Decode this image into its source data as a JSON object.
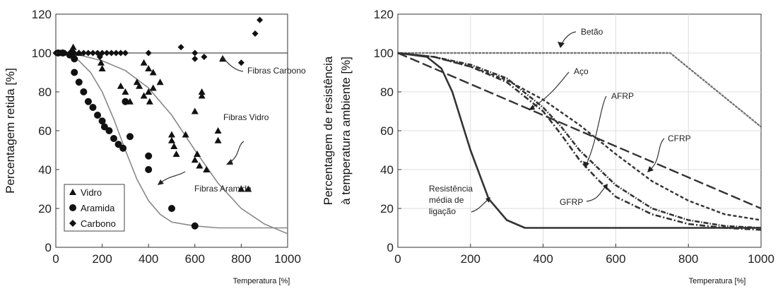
{
  "chart_data": [
    {
      "type": "scatter",
      "xlabel": "Temperatura [%]",
      "ylabel": "Percentagem retida [%]",
      "xlim": [
        0,
        1000
      ],
      "ylim": [
        0,
        120
      ],
      "xticks": [
        "0",
        "200",
        "400",
        "600",
        "800",
        "1000"
      ],
      "yticks": [
        "0",
        "20",
        "40",
        "60",
        "80",
        "100",
        "120"
      ],
      "reference_line": 100,
      "legend_position": "bottom-left",
      "series": [
        {
          "name": "Vidro",
          "marker": "triangle",
          "points": [
            [
              20,
              100
            ],
            [
              75,
              103
            ],
            [
              100,
              100
            ],
            [
              195,
              95
            ],
            [
              200,
              92
            ],
            [
              280,
              83
            ],
            [
              300,
              80
            ],
            [
              320,
              75
            ],
            [
              350,
              85
            ],
            [
              360,
              83
            ],
            [
              380,
              95
            ],
            [
              380,
              78
            ],
            [
              400,
              92
            ],
            [
              400,
              80
            ],
            [
              405,
              75
            ],
            [
              420,
              82
            ],
            [
              420,
              90
            ],
            [
              450,
              85
            ],
            [
              500,
              58
            ],
            [
              500,
              55
            ],
            [
              510,
              52
            ],
            [
              520,
              48
            ],
            [
              560,
              58
            ],
            [
              600,
              70
            ],
            [
              600,
              45
            ],
            [
              610,
              48
            ],
            [
              620,
              42
            ],
            [
              630,
              78
            ],
            [
              630,
              80
            ],
            [
              650,
              40
            ],
            [
              700,
              60
            ],
            [
              700,
              55
            ],
            [
              720,
              97
            ],
            [
              800,
              30
            ],
            [
              830,
              30
            ]
          ]
        },
        {
          "name": "Aramida",
          "marker": "circle",
          "points": [
            [
              10,
              100
            ],
            [
              30,
              100
            ],
            [
              60,
              99
            ],
            [
              70,
              100
            ],
            [
              80,
              97
            ],
            [
              80,
              90
            ],
            [
              100,
              85
            ],
            [
              120,
              80
            ],
            [
              140,
              75
            ],
            [
              160,
              72
            ],
            [
              180,
              68
            ],
            [
              200,
              65
            ],
            [
              210,
              62
            ],
            [
              230,
              60
            ],
            [
              250,
              56
            ],
            [
              270,
              53
            ],
            [
              290,
              51
            ],
            [
              300,
              75
            ],
            [
              320,
              57
            ],
            [
              400,
              47
            ],
            [
              400,
              40
            ],
            [
              500,
              20
            ],
            [
              600,
              11
            ]
          ]
        },
        {
          "name": "Carbono",
          "marker": "diamond",
          "points": [
            [
              0,
              100
            ],
            [
              20,
              100
            ],
            [
              40,
              100
            ],
            [
              60,
              100
            ],
            [
              80,
              100
            ],
            [
              100,
              100
            ],
            [
              120,
              100
            ],
            [
              140,
              100
            ],
            [
              160,
              100
            ],
            [
              180,
              100
            ],
            [
              190,
              98
            ],
            [
              200,
              100
            ],
            [
              220,
              100
            ],
            [
              240,
              100
            ],
            [
              260,
              100
            ],
            [
              280,
              100
            ],
            [
              300,
              100
            ],
            [
              400,
              100
            ],
            [
              540,
              103
            ],
            [
              600,
              100
            ],
            [
              600,
              97
            ],
            [
              640,
              98
            ],
            [
              800,
              95
            ],
            [
              860,
              110
            ],
            [
              880,
              117
            ]
          ]
        }
      ],
      "fit_curves": [
        {
          "label": "Fibras Carbono",
          "points": [
            [
              0,
              100
            ],
            [
              1000,
              100
            ]
          ]
        },
        {
          "label": "Fibras Vidro",
          "points": [
            [
              0,
              100
            ],
            [
              100,
              99
            ],
            [
              200,
              96
            ],
            [
              300,
              91
            ],
            [
              400,
              82
            ],
            [
              500,
              68
            ],
            [
              600,
              50
            ],
            [
              700,
              33
            ],
            [
              800,
              20
            ],
            [
              900,
              12
            ],
            [
              1000,
              7
            ]
          ]
        },
        {
          "label": "Fibras Aramida",
          "points": [
            [
              0,
              100
            ],
            [
              50,
              99
            ],
            [
              100,
              96
            ],
            [
              150,
              90
            ],
            [
              200,
              80
            ],
            [
              250,
              66
            ],
            [
              300,
              50
            ],
            [
              350,
              35
            ],
            [
              400,
              24
            ],
            [
              450,
              17
            ],
            [
              500,
              13
            ],
            [
              600,
              11
            ],
            [
              700,
              10
            ],
            [
              800,
              10
            ],
            [
              1000,
              10
            ]
          ]
        }
      ],
      "annotations": [
        "Fibras Carbono",
        "Fibras Vidro",
        "Fibras Aramida"
      ]
    },
    {
      "type": "line",
      "xlabel": "Temperatura [%]",
      "ylabel": "Percentagem de resistência à temperatura ambiente [%]",
      "ylabel_lines": [
        "Percentagem de resistência",
        "à temperatura ambiente [%]"
      ],
      "xlim": [
        0,
        1000
      ],
      "ylim": [
        0,
        120
      ],
      "xticks": [
        "0",
        "200",
        "400",
        "600",
        "800",
        "1000"
      ],
      "yticks": [
        "0",
        "20",
        "40",
        "60",
        "80",
        "100",
        "120"
      ],
      "series": [
        {
          "name": "Betão",
          "style": "dotted",
          "x": [
            0,
            750,
            1000
          ],
          "y": [
            100,
            100,
            62
          ]
        },
        {
          "name": "Aço",
          "style": "short-dash",
          "x": [
            0,
            100,
            200,
            300,
            400,
            500,
            600,
            700,
            800,
            900,
            1000
          ],
          "y": [
            100,
            98,
            93,
            86,
            76,
            63,
            48,
            34,
            24,
            17,
            14
          ]
        },
        {
          "name": "AFRP",
          "style": "dense-dash",
          "x": [
            0,
            100,
            200,
            300,
            400,
            450,
            500,
            600,
            700,
            800,
            900,
            1000
          ],
          "y": [
            100,
            98,
            94,
            87,
            72,
            62,
            50,
            32,
            20,
            14,
            11,
            10
          ]
        },
        {
          "name": "CFRP",
          "style": "long-dash",
          "x": [
            0,
            100,
            200,
            300,
            400,
            500,
            600,
            700,
            800,
            900,
            1000
          ],
          "y": [
            100,
            92,
            84,
            76,
            68,
            60,
            52,
            44,
            36,
            28,
            20
          ]
        },
        {
          "name": "GFRP",
          "style": "dash-dot",
          "x": [
            0,
            100,
            200,
            300,
            400,
            450,
            500,
            550,
            600,
            700,
            800,
            900,
            1000
          ],
          "y": [
            100,
            98,
            93,
            85,
            70,
            58,
            45,
            35,
            26,
            17,
            12,
            10,
            9
          ]
        },
        {
          "name": "Resistência média de ligação",
          "style": "solid",
          "x": [
            0,
            80,
            120,
            150,
            200,
            250,
            300,
            350,
            380,
            400,
            600,
            800,
            1000
          ],
          "y": [
            100,
            98,
            92,
            80,
            50,
            25,
            14,
            10,
            10,
            10,
            10,
            10,
            10
          ]
        }
      ],
      "annotations": [
        "Betão",
        "Aço",
        "AFRP",
        "CFRP",
        "GFRP",
        "Resistência média de ligação"
      ],
      "annotation_lines": {
        "resistencia": [
          "Resistência",
          "média de",
          "ligação"
        ]
      }
    }
  ]
}
